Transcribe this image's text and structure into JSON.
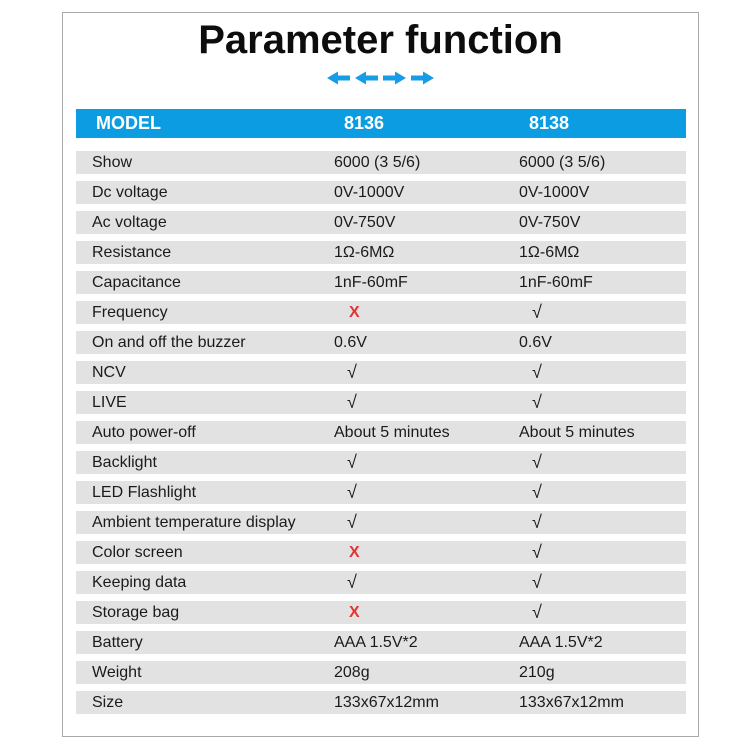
{
  "title": "Parameter function",
  "icons": {
    "arrows": [
      "arrow-left",
      "arrow-left",
      "arrow-right",
      "arrow-right"
    ],
    "arrow_color": "#169de5"
  },
  "colors": {
    "header_bg": "#0c9ce2",
    "header_text": "#ffffff",
    "row_bg": "#e3e2e2",
    "cross_red": "#e43333",
    "text_black": "#1b1b1b",
    "frame_border": "#a9a9a9"
  },
  "marks": {
    "check_symbol": "√",
    "cross_symbol": "X"
  },
  "chart_data": {
    "type": "table",
    "title": "Parameter function",
    "columns": [
      "MODEL",
      "8136",
      "8138"
    ],
    "rows": [
      {
        "label": "Show",
        "m8136": "6000 (3 5/6)",
        "m8138": "6000 (3 5/6)"
      },
      {
        "label": "Dc voltage",
        "m8136": "0V-1000V",
        "m8138": "0V-1000V"
      },
      {
        "label": "Ac voltage",
        "m8136": "0V-750V",
        "m8138": "0V-750V"
      },
      {
        "label": "Resistance",
        "m8136": "1Ω-6MΩ",
        "m8138": "1Ω-6MΩ"
      },
      {
        "label": "Capacitance",
        "m8136": "1nF-60mF",
        "m8138": "1nF-60mF"
      },
      {
        "label": "Frequency",
        "m8136": "X",
        "m8138": "√"
      },
      {
        "label": "On and off the buzzer",
        "m8136": "0.6V",
        "m8138": "0.6V"
      },
      {
        "label": "NCV",
        "m8136": "√",
        "m8138": "√"
      },
      {
        "label": "LIVE",
        "m8136": "√",
        "m8138": "√"
      },
      {
        "label": "Auto power-off",
        "m8136": "About 5 minutes",
        "m8138": "About 5 minutes"
      },
      {
        "label": "Backlight",
        "m8136": "√",
        "m8138": "√"
      },
      {
        "label": "LED Flashlight",
        "m8136": "√",
        "m8138": "√"
      },
      {
        "label": "Ambient temperature display",
        "m8136": "√",
        "m8138": "√"
      },
      {
        "label": "Color screen",
        "m8136": "X",
        "m8138": "√"
      },
      {
        "label": "Keeping data",
        "m8136": "√",
        "m8138": "√"
      },
      {
        "label": "Storage bag",
        "m8136": "X",
        "m8138": "√"
      },
      {
        "label": "Battery",
        "m8136": "AAA 1.5V*2",
        "m8138": "AAA 1.5V*2"
      },
      {
        "label": "Weight",
        "m8136": "208g",
        "m8138": "210g"
      },
      {
        "label": "Size",
        "m8136": "133x67x12mm",
        "m8138": "133x67x12mm"
      }
    ]
  }
}
